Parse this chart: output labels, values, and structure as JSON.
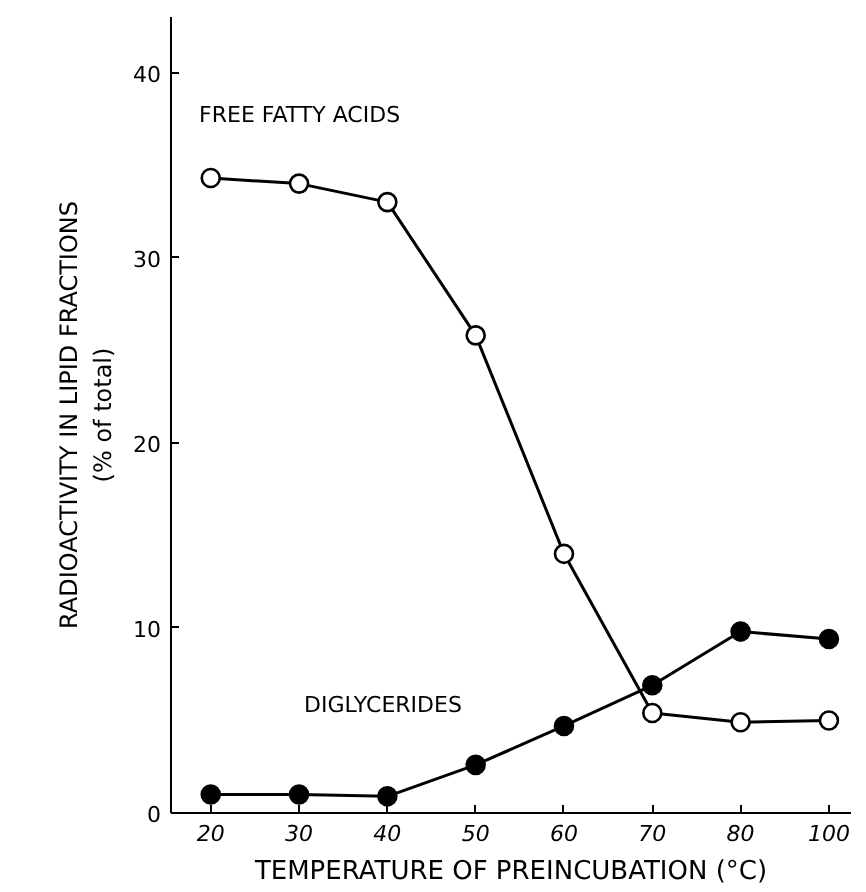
{
  "chart_data": {
    "type": "line",
    "xlabel": "TEMPERATURE OF PREINCUBATION (°C)",
    "ylabel": "RADIOACTIVITY IN LIPID FRACTIONS\n(% of total)",
    "categories": [
      "20",
      "30",
      "40",
      "50",
      "60",
      "70",
      "80",
      "100"
    ],
    "ylim": [
      0,
      43
    ],
    "yticks": [
      0,
      10,
      20,
      30,
      40
    ],
    "grid": false,
    "marker": "circle",
    "line_style": "solid",
    "series": [
      {
        "name": "FREE FATTY ACIDS",
        "color": "#000000",
        "values": [
          34.3,
          34.0,
          33.0,
          25.8,
          14.0,
          5.4,
          4.9,
          5.0
        ]
      },
      {
        "name": "DIGLYCERIDES",
        "color": "#000000",
        "values": [
          1.0,
          1.0,
          0.9,
          2.6,
          4.7,
          6.9,
          9.8,
          9.4
        ]
      }
    ]
  }
}
